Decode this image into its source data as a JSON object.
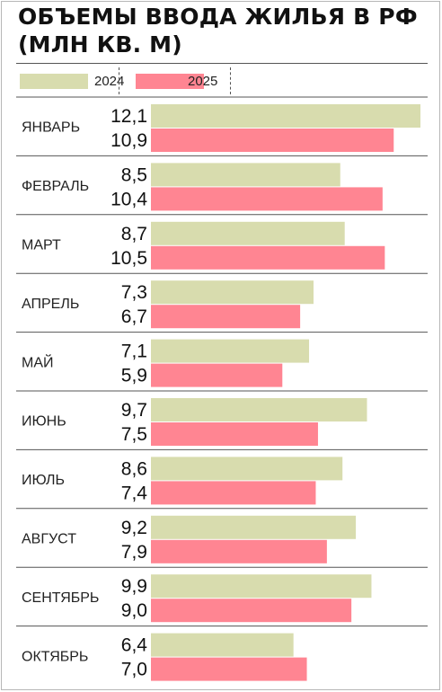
{
  "chart_data": {
    "type": "bar",
    "orientation": "horizontal",
    "title_lines": [
      "ОБЪЕМЫ ВВОДА ЖИЛЬЯ В РФ",
      "(МЛН КВ. М)"
    ],
    "legend_placement": "top",
    "categories": [
      "ЯНВАРЬ",
      "ФЕВРАЛЬ",
      "МАРТ",
      "АПРЕЛЬ",
      "МАЙ",
      "ИЮНЬ",
      "ИЮЛЬ",
      "АВГУСТ",
      "СЕНТЯБРЬ",
      "ОКТЯБРЬ"
    ],
    "series": [
      {
        "name": "2024",
        "color": "#d8dcae",
        "values": [
          12.1,
          8.5,
          8.7,
          7.3,
          7.1,
          9.7,
          8.6,
          9.2,
          9.9,
          6.4
        ],
        "value_labels": [
          "12,1",
          "8,5",
          "8,7",
          "7,3",
          "7,1",
          "9,7",
          "8,6",
          "9,2",
          "9,9",
          "6,4"
        ]
      },
      {
        "name": "2025",
        "color": "#ff8592",
        "values": [
          10.9,
          10.4,
          10.5,
          6.7,
          5.9,
          7.5,
          7.4,
          7.9,
          9.0,
          7.0
        ],
        "value_labels": [
          "10,9",
          "10,4",
          "10,5",
          "6,7",
          "5,9",
          "7,5",
          "7,4",
          "7,9",
          "9,0",
          "7,0"
        ]
      }
    ],
    "xlim": [
      0,
      12.1
    ],
    "grid": false,
    "row_separators": true
  }
}
